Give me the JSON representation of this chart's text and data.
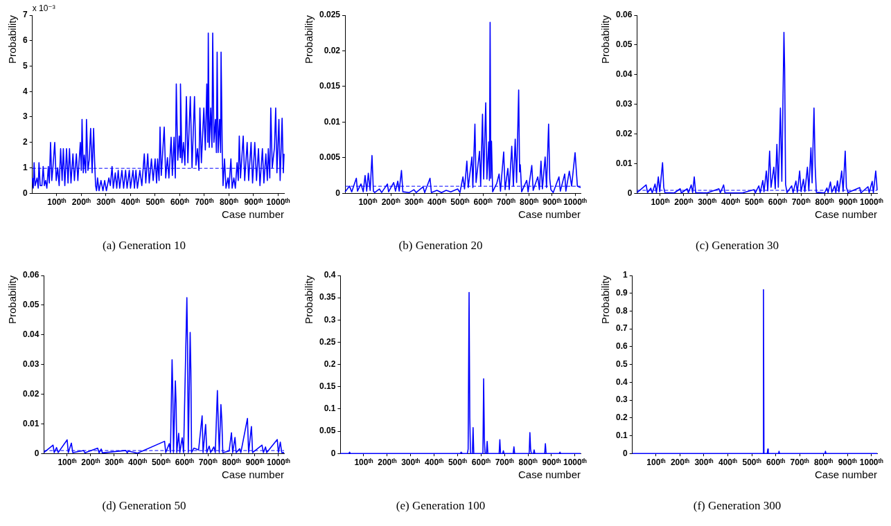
{
  "chart_data": [
    {
      "type": "line",
      "title": "(a) Generation 10",
      "xlabel": "Case number",
      "ylabel": "Probability",
      "annotations": [
        "x 10⁻³"
      ],
      "xlim": [
        1,
        1024
      ],
      "ylim": [
        0,
        7
      ],
      "yticks": [
        0,
        1,
        2,
        3,
        4,
        5,
        6,
        7
      ],
      "xticks": [
        {
          "value": 100,
          "label": "100ᵗʰ"
        },
        {
          "value": 200,
          "label": "200ᵗʰ"
        },
        {
          "value": 300,
          "label": "300ᵗʰ"
        },
        {
          "value": 400,
          "label": "400ᵗʰ"
        },
        {
          "value": 500,
          "label": "500ᵗʰ"
        },
        {
          "value": 600,
          "label": "600ᵗʰ"
        },
        {
          "value": 700,
          "label": "700ᵗʰ"
        },
        {
          "value": 800,
          "label": "800ᵗʰ"
        },
        {
          "value": 900,
          "label": "900ᵗʰ"
        },
        {
          "value": 1000,
          "label": "1000ᵗʰ"
        }
      ],
      "ref_lines": [
        {
          "axis": "y",
          "value": 0.98,
          "color": "#0000ff",
          "line_style": "dashed"
        }
      ],
      "series": [
        {
          "color": "#0000ff",
          "x": [
            1,
            5,
            8,
            12,
            20,
            25,
            28,
            33,
            40,
            45,
            50,
            55,
            60,
            66,
            70,
            75,
            80,
            85,
            92,
            98,
            104,
            110,
            116,
            122,
            127,
            133,
            140,
            146,
            152,
            158,
            166,
            172,
            180,
            186,
            196,
            200,
            203,
            208,
            212,
            218,
            221,
            227,
            232,
            238,
            244,
            250,
            254,
            258,
            262,
            266,
            272,
            280,
            288,
            295,
            302,
            312,
            318,
            325,
            330,
            338,
            344,
            350,
            356,
            365,
            372,
            380,
            386,
            395,
            400,
            410,
            416,
            422,
            428,
            438,
            446,
            456,
            462,
            470,
            476,
            485,
            492,
            500,
            506,
            510,
            516,
            520,
            525,
            537,
            543,
            550,
            556,
            565,
            570,
            577,
            582,
            586,
            592,
            598,
            602,
            603,
            609,
            615,
            621,
            627,
            633,
            643,
            650,
            660,
            666,
            672,
            678,
            682,
            688,
            698,
            704,
            710,
            714,
            716,
            720,
            726,
            731,
            734,
            739,
            745,
            749,
            752,
            756,
            762,
            766,
            768,
            773,
            776,
            782,
            788,
            796,
            800,
            808,
            813,
            820,
            826,
            833,
            838,
            842,
            847,
            858,
            864,
            874,
            880,
            890,
            896,
            905,
            912,
            920,
            926,
            936,
            942,
            950,
            956,
            960,
            966,
            970,
            976,
            985,
            990,
            995,
            1003,
            1008,
            1016,
            1021,
            1024
          ],
          "values": [
            0.6,
            0.2,
            1.2,
            0.3,
            0.6,
            0.2,
            1.2,
            0.3,
            0.3,
            1.05,
            0.3,
            0.5,
            0.2,
            1.05,
            0.4,
            2.0,
            0.5,
            1.05,
            2.0,
            0.5,
            1.0,
            0.3,
            1.75,
            0.5,
            1.75,
            0.3,
            1.75,
            0.4,
            1.75,
            0.4,
            1.55,
            0.5,
            1.55,
            0.5,
            2.0,
            0.9,
            2.9,
            0.8,
            1.5,
            0.8,
            2.9,
            0.9,
            1.3,
            2.55,
            0.8,
            2.55,
            1.3,
            0.3,
            0.1,
            0.6,
            0.1,
            0.5,
            0.1,
            0.5,
            0.1,
            0.6,
            0.3,
            1.05,
            0.2,
            0.8,
            0.2,
            0.9,
            0.2,
            0.9,
            0.2,
            0.9,
            0.2,
            0.9,
            0.2,
            0.9,
            0.2,
            0.9,
            0.2,
            0.9,
            0.3,
            1.55,
            0.4,
            1.55,
            0.4,
            1.35,
            0.5,
            1.35,
            0.4,
            1.35,
            0.5,
            2.6,
            0.7,
            2.6,
            0.6,
            1.4,
            0.6,
            2.2,
            0.7,
            2.2,
            0.6,
            4.3,
            1.3,
            2.25,
            1.4,
            4.3,
            1.2,
            2.0,
            1.1,
            3.8,
            1.2,
            3.8,
            1.0,
            3.8,
            1.1,
            1.75,
            0.9,
            3.35,
            1.2,
            3.35,
            1.7,
            4.3,
            2.0,
            6.3,
            1.8,
            3.35,
            1.8,
            6.3,
            2.0,
            2.9,
            1.6,
            5.55,
            1.6,
            2.9,
            1.6,
            5.55,
            1.5,
            0.3,
            1.35,
            0.2,
            0.6,
            0.2,
            1.35,
            0.2,
            0.6,
            0.2,
            1.2,
            0.5,
            2.25,
            0.6,
            2.25,
            0.5,
            2.0,
            0.5,
            2.0,
            0.4,
            2.0,
            0.5,
            1.75,
            0.3,
            1.75,
            0.4,
            1.55,
            0.5,
            1.75,
            0.6,
            3.35,
            1.0,
            1.8,
            3.35,
            0.8,
            2.9,
            0.5,
            2.95,
            0.8,
            1.55
          ]
        }
      ]
    },
    {
      "type": "line",
      "title": "(b) Generation 20",
      "xlabel": "Case number",
      "ylabel": "Probability",
      "xlim": [
        1,
        1024
      ],
      "ylim": [
        0,
        0.025
      ],
      "yticks": [
        0,
        0.005,
        0.01,
        0.015,
        0.02,
        0.025
      ],
      "xticks": [
        {
          "value": 100,
          "label": "100ᵗʰ"
        },
        {
          "value": 200,
          "label": "200ᵗʰ"
        },
        {
          "value": 300,
          "label": "300ᵗʰ"
        },
        {
          "value": 400,
          "label": "400ᵗʰ"
        },
        {
          "value": 500,
          "label": "500ᵗʰ"
        },
        {
          "value": 600,
          "label": "600ᵗʰ"
        },
        {
          "value": 700,
          "label": "700ᵗʰ"
        },
        {
          "value": 800,
          "label": "800ᵗʰ"
        },
        {
          "value": 900,
          "label": "900ᵗʰ"
        },
        {
          "value": 1000,
          "label": "1000ᵗʰ"
        }
      ],
      "ref_lines": [
        {
          "axis": "y",
          "value": 0.00098,
          "color": "#0000ff",
          "line_style": "dashed"
        }
      ],
      "series": [
        {
          "color": "#0000ff",
          "x": [
            1,
            20,
            30,
            50,
            55,
            70,
            80,
            88,
            95,
            102,
            110,
            118,
            124,
            130,
            150,
            160,
            185,
            190,
            212,
            220,
            230,
            236,
            246,
            252,
            280,
            300,
            310,
            340,
            347,
            370,
            376,
            400,
            420,
            440,
            460,
            490,
            500,
            513,
            520,
            530,
            536,
            552,
            556,
            565,
            570,
            585,
            590,
            598,
            603,
            612,
            617,
            625,
            628,
            631,
            634,
            637,
            642,
            660,
            670,
            676,
            690,
            696,
            708,
            714,
            725,
            732,
            740,
            746,
            755,
            759,
            762,
            768,
            790,
            796,
            812,
            818,
            838,
            845,
            852,
            858,
            870,
            876,
            885,
            890,
            895,
            905,
            930,
            936,
            955,
            960,
            975,
            985,
            1000,
            1010,
            1024
          ],
          "values": [
            0.0002,
            0.001,
            0.0002,
            0.0021,
            0.0003,
            0.0013,
            0.0002,
            0.0025,
            0.0003,
            0.0028,
            0.0004,
            0.0053,
            0.0003,
            0.0001,
            0.0006,
            0.0001,
            0.0013,
            0.0002,
            0.0015,
            0.0003,
            0.0017,
            0.0003,
            0.0032,
            0.0002,
            0.0001,
            0.0005,
            0.0001,
            0.0009,
            0.0001,
            0.0021,
            0.0001,
            0.0004,
            0.0001,
            0.0004,
            0.0002,
            0.0006,
            0.0001,
            0.0023,
            0.0006,
            0.0045,
            0.0008,
            0.0051,
            0.0008,
            0.0097,
            0.0015,
            0.0059,
            0.001,
            0.0111,
            0.002,
            0.0127,
            0.002,
            0.0072,
            0.0018,
            0.024,
            0.0021,
            0.0073,
            0.0002,
            0.0014,
            0.0027,
            0.0003,
            0.0058,
            0.0005,
            0.0035,
            0.0005,
            0.0066,
            0.001,
            0.0076,
            0.0015,
            0.0145,
            0.003,
            0.004,
            0.0002,
            0.0018,
            0.0002,
            0.0039,
            0.0004,
            0.0023,
            0.0005,
            0.0045,
            0.0006,
            0.0051,
            0.0008,
            0.0097,
            0.002,
            0.0005,
            0.0001,
            0.0023,
            0.0003,
            0.0027,
            0.0003,
            0.0031,
            0.001,
            0.0057,
            0.001,
            0.0008
          ]
        }
      ]
    },
    {
      "type": "line",
      "title": "(c) Generation 30",
      "xlabel": "Case number",
      "ylabel": "Probability",
      "xlim": [
        1,
        1024
      ],
      "ylim": [
        0,
        0.06
      ],
      "yticks": [
        0,
        0.01,
        0.02,
        0.03,
        0.04,
        0.05,
        0.06
      ],
      "xticks": [
        {
          "value": 100,
          "label": "100ᵗʰ"
        },
        {
          "value": 200,
          "label": "200ᵗʰ"
        },
        {
          "value": 300,
          "label": "300ᵗʰ"
        },
        {
          "value": 400,
          "label": "400ᵗʰ"
        },
        {
          "value": 500,
          "label": "500ᵗʰ"
        },
        {
          "value": 600,
          "label": "600ᵗʰ"
        },
        {
          "value": 700,
          "label": "700ᵗʰ"
        },
        {
          "value": 800,
          "label": "800ᵗʰ"
        },
        {
          "value": 900,
          "label": "900ᵗʰ"
        },
        {
          "value": 1000,
          "label": "1000ᵗʰ"
        }
      ],
      "ref_lines": [
        {
          "axis": "y",
          "value": 0.00098,
          "color": "#0000ff",
          "line_style": "dashed"
        }
      ],
      "series": [
        {
          "color": "#0000ff",
          "x": [
            1,
            40,
            46,
            60,
            66,
            78,
            84,
            92,
            98,
            110,
            115,
            120,
            160,
            185,
            190,
            215,
            220,
            232,
            238,
            245,
            251,
            300,
            350,
            356,
            370,
            376,
            450,
            500,
            505,
            520,
            526,
            537,
            542,
            552,
            558,
            566,
            572,
            584,
            590,
            597,
            603,
            612,
            618,
            627,
            630,
            634,
            640,
            660,
            666,
            678,
            684,
            694,
            700,
            710,
            716,
            727,
            733,
            742,
            747,
            755,
            760,
            765,
            800,
            810,
            815,
            825,
            831,
            843,
            848,
            855,
            861,
            873,
            879,
            888,
            893,
            900,
            950,
            955,
            985,
            990,
            1003,
            1008,
            1018,
            1022,
            1024
          ],
          "values": [
            0.0002,
            0.0028,
            0.0002,
            0.0017,
            0.0001,
            0.0031,
            0.0002,
            0.0055,
            0.0005,
            0.0103,
            0.002,
            0.0002,
            0.0001,
            0.0015,
            0.0001,
            0.0015,
            0.0001,
            0.0028,
            0.0002,
            0.0055,
            0.0002,
            0.0001,
            0.0015,
            0.0001,
            0.0028,
            0.0001,
            0.0001,
            0.0012,
            0.0001,
            0.0025,
            0.0002,
            0.0043,
            0.0005,
            0.0075,
            0.0008,
            0.0142,
            0.002,
            0.0088,
            0.0015,
            0.0165,
            0.002,
            0.0287,
            0.004,
            0.0542,
            0.042,
            0.003,
            0.0002,
            0.0025,
            0.0002,
            0.0041,
            0.0003,
            0.0075,
            0.0005,
            0.0047,
            0.0005,
            0.0088,
            0.0008,
            0.0153,
            0.0035,
            0.0287,
            0.009,
            0.0003,
            0.0001,
            0.0018,
            0.0002,
            0.0038,
            0.0003,
            0.0025,
            0.0002,
            0.0042,
            0.0004,
            0.0075,
            0.0006,
            0.0142,
            0.002,
            0.0002,
            0.0019,
            0.0001,
            0.0022,
            0.0002,
            0.004,
            0.0002,
            0.0075,
            0.0035,
            0.001
          ]
        }
      ]
    },
    {
      "type": "line",
      "title": "(d) Generation 50",
      "xlabel": "Case number",
      "ylabel": "Probability",
      "xlim": [
        1,
        1024
      ],
      "ylim": [
        0,
        0.06
      ],
      "yticks": [
        0,
        0.01,
        0.02,
        0.03,
        0.04,
        0.05,
        0.06
      ],
      "xticks": [
        {
          "value": 100,
          "label": "100ᵗʰ"
        },
        {
          "value": 200,
          "label": "200ᵗʰ"
        },
        {
          "value": 300,
          "label": "300ᵗʰ"
        },
        {
          "value": 400,
          "label": "400ᵗʰ"
        },
        {
          "value": 500,
          "label": "500ᵗʰ"
        },
        {
          "value": 600,
          "label": "600ᵗʰ"
        },
        {
          "value": 700,
          "label": "700ᵗʰ"
        },
        {
          "value": 800,
          "label": "800ᵗʰ"
        },
        {
          "value": 900,
          "label": "900ᵗʰ"
        },
        {
          "value": 1000,
          "label": "1000ᵗʰ"
        }
      ],
      "ref_lines": [
        {
          "axis": "y",
          "value": 0.00098,
          "color": "#0000ff",
          "line_style": "dashed"
        }
      ],
      "series": [
        {
          "color": "#0000ff",
          "x": [
            1,
            40,
            45,
            55,
            62,
            100,
            105,
            118,
            124,
            170,
            176,
            230,
            236,
            245,
            250,
            350,
            356,
            360,
            400,
            515,
            520,
            535,
            540,
            547,
            550,
            553,
            561,
            564,
            567,
            575,
            580,
            590,
            596,
            610,
            613,
            616,
            624,
            627,
            630,
            640,
            660,
            675,
            679,
            690,
            695,
            705,
            711,
            725,
            731,
            740,
            744,
            748,
            755,
            759,
            763,
            790,
            800,
            805,
            815,
            820,
            835,
            840,
            868,
            873,
            885,
            890,
            930,
            936,
            945,
            950,
            995,
            1000,
            1008,
            1014,
            1024
          ],
          "values": [
            0.0003,
            0.0028,
            0.0003,
            0.002,
            0.0003,
            0.0046,
            0.0003,
            0.0035,
            0.0003,
            0.001,
            0.0002,
            0.0018,
            0.0002,
            0.0015,
            0.0002,
            0.001,
            0.0002,
            0.0008,
            0.0001,
            0.0041,
            0.0003,
            0.0033,
            0.0003,
            0.0316,
            0.0215,
            0.0003,
            0.0245,
            0.017,
            0.0003,
            0.0068,
            0.0003,
            0.0053,
            0.0003,
            0.0525,
            0.036,
            0.0003,
            0.0408,
            0.028,
            0.0003,
            0.0018,
            0.0012,
            0.0127,
            0.0003,
            0.0098,
            0.0003,
            0.0025,
            0.0003,
            0.0022,
            0.0003,
            0.0212,
            0.01,
            0.0003,
            0.0165,
            0.011,
            0.0003,
            0.0008,
            0.007,
            0.0003,
            0.0054,
            0.0003,
            0.0016,
            0.0003,
            0.0118,
            0.0003,
            0.0091,
            0.0003,
            0.0028,
            0.0003,
            0.0022,
            0.0003,
            0.0047,
            0.0003,
            0.0038,
            0.0003,
            0.0003
          ]
        }
      ]
    },
    {
      "type": "line",
      "title": "(e) Generation 100",
      "xlabel": "Case number",
      "ylabel": "Probability",
      "xlim": [
        1,
        1024
      ],
      "ylim": [
        0,
        0.4
      ],
      "yticks": [
        0,
        0.05,
        0.1,
        0.15,
        0.2,
        0.25,
        0.3,
        0.35,
        0.4
      ],
      "xticks": [
        {
          "value": 100,
          "label": "100ᵗʰ"
        },
        {
          "value": 200,
          "label": "200ᵗʰ"
        },
        {
          "value": 300,
          "label": "300ᵗʰ"
        },
        {
          "value": 400,
          "label": "400ᵗʰ"
        },
        {
          "value": 500,
          "label": "500ᵗʰ"
        },
        {
          "value": 600,
          "label": "600ᵗʰ"
        },
        {
          "value": 700,
          "label": "700ᵗʰ"
        },
        {
          "value": 800,
          "label": "800ᵗʰ"
        },
        {
          "value": 900,
          "label": "900ᵗʰ"
        },
        {
          "value": 1000,
          "label": "1000ᵗʰ"
        }
      ],
      "series": [
        {
          "color": "#0000ff",
          "x": [
            1,
            37,
            40,
            43,
            512,
            515,
            520,
            542,
            545,
            549,
            552,
            555,
            563,
            566,
            569,
            608,
            611,
            614,
            617,
            623,
            626,
            629,
            677,
            680,
            683,
            692,
            695,
            698,
            737,
            740,
            743,
            805,
            808,
            811,
            814,
            823,
            826,
            829,
            871,
            874,
            877,
            933,
            936,
            939,
            1024
          ],
          "values": [
            0,
            0,
            0.003,
            0,
            0,
            0.003,
            0,
            0,
            0.01,
            0.362,
            0.08,
            0,
            0,
            0.058,
            0,
            0,
            0.168,
            0.035,
            0,
            0,
            0.027,
            0,
            0,
            0.031,
            0,
            0,
            0.006,
            0,
            0,
            0.015,
            0,
            0,
            0.047,
            0.01,
            0,
            0,
            0.008,
            0,
            0,
            0.022,
            0,
            0,
            0.003,
            0,
            0
          ]
        }
      ]
    },
    {
      "type": "line",
      "title": "(f) Generation 300",
      "xlabel": "Case number",
      "ylabel": "Probability",
      "xlim": [
        1,
        1024
      ],
      "ylim": [
        0,
        1
      ],
      "yticks": [
        0,
        0.1,
        0.2,
        0.3,
        0.4,
        0.5,
        0.6,
        0.7,
        0.8,
        0.9,
        1
      ],
      "xticks": [
        {
          "value": 100,
          "label": "100ᵗʰ"
        },
        {
          "value": 200,
          "label": "200ᵗʰ"
        },
        {
          "value": 300,
          "label": "300ᵗʰ"
        },
        {
          "value": 400,
          "label": "400ᵗʰ"
        },
        {
          "value": 500,
          "label": "500ᵗʰ"
        },
        {
          "value": 600,
          "label": "600ᵗʰ"
        },
        {
          "value": 700,
          "label": "700ᵗʰ"
        },
        {
          "value": 800,
          "label": "800ᵗʰ"
        },
        {
          "value": 900,
          "label": "900ᵗʰ"
        },
        {
          "value": 1000,
          "label": "1000ᵗʰ"
        }
      ],
      "series": [
        {
          "color": "#0000ff",
          "x": [
            1,
            548,
            549,
            551,
            565,
            567,
            569,
            612,
            614,
            616,
            806,
            808,
            810,
            1024
          ],
          "values": [
            0,
            0,
            0.92,
            0,
            0,
            0.025,
            0,
            0,
            0.012,
            0,
            0,
            0.012,
            0,
            0
          ]
        }
      ]
    }
  ]
}
